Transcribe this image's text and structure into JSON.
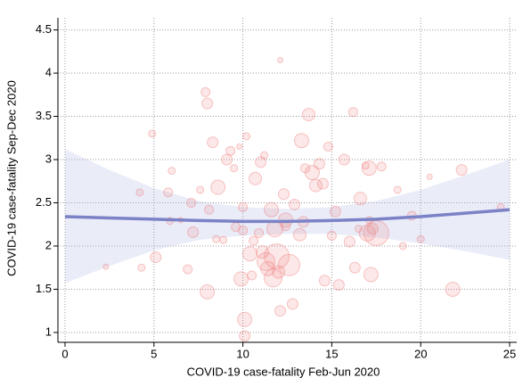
{
  "chart_data": {
    "type": "bubble",
    "xlabel": "COVID-19 case-fatality Feb-Jun 2020",
    "ylabel": "COVID-19 case-fatality Sep-Dec 2020",
    "xlim": [
      -0.4,
      25.4
    ],
    "ylim": [
      0.886,
      4.64
    ],
    "xticks": [
      0,
      5,
      10,
      15,
      20,
      25
    ],
    "yticks": [
      1,
      1.5,
      2,
      2.5,
      3,
      3.5,
      4,
      4.5
    ],
    "grid": true,
    "series": [
      {
        "color": "#f08080",
        "x": [
          2.3,
          4.2,
          4.3,
          4.9,
          5.1,
          5.8,
          5.9,
          6.0,
          6.9,
          7.1,
          7.2,
          7.6,
          7.9,
          8.0,
          8.0,
          8.1,
          8.3,
          8.5,
          8.6,
          8.9,
          9.1,
          9.3,
          9.5,
          9.6,
          9.9,
          10.0,
          10.0,
          10.1,
          10.1,
          10.2,
          10.4,
          10.5,
          10.6,
          10.7,
          10.9,
          11.0,
          11.1,
          11.3,
          11.4,
          11.6,
          11.7,
          11.8,
          11.9,
          12.0,
          12.1,
          12.1,
          12.3,
          12.4,
          12.6,
          12.8,
          12.9,
          13.2,
          13.3,
          13.4,
          13.5,
          13.7,
          13.9,
          14.1,
          14.3,
          14.5,
          14.6,
          14.8,
          15.0,
          15.2,
          15.4,
          15.7,
          16.0,
          16.2,
          16.3,
          16.5,
          16.6,
          16.9,
          17.0,
          17.1,
          17.3,
          17.5,
          17.8,
          17.2,
          17.1,
          18.7,
          19.0,
          19.5,
          20.0,
          21.8,
          22.3,
          24.5,
          20.5,
          11.2,
          12.4,
          9.8,
          6.5
        ],
        "values": [
          1.76,
          2.62,
          1.75,
          3.3,
          1.87,
          2.62,
          2.29,
          2.87,
          1.73,
          2.5,
          2.16,
          2.65,
          3.78,
          3.65,
          1.47,
          2.42,
          3.2,
          2.08,
          2.68,
          2.07,
          3.0,
          3.1,
          2.9,
          2.22,
          1.62,
          2.45,
          2.18,
          1.15,
          0.96,
          3.27,
          1.91,
          1.66,
          2.06,
          2.78,
          2.15,
          2.97,
          1.93,
          1.82,
          1.74,
          2.42,
          1.63,
          2.2,
          1.88,
          1.7,
          4.15,
          1.25,
          2.6,
          2.3,
          1.78,
          1.33,
          2.48,
          2.13,
          3.22,
          2.28,
          2.9,
          3.52,
          2.85,
          2.7,
          2.95,
          2.72,
          1.6,
          3.15,
          2.12,
          2.4,
          1.55,
          3.0,
          2.05,
          3.55,
          1.75,
          2.2,
          2.55,
          2.93,
          2.15,
          2.9,
          2.2,
          2.15,
          2.92,
          1.67,
          2.3,
          2.65,
          2.0,
          2.35,
          2.08,
          1.5,
          2.88,
          2.45,
          2.8,
          3.05,
          2.23,
          3.15,
          2.3
        ],
        "sizes": [
          3,
          4,
          4,
          4,
          6,
          5,
          4,
          4,
          5,
          5,
          6,
          4,
          5,
          6,
          8,
          5,
          6,
          4,
          8,
          4,
          6,
          5,
          4,
          5,
          8,
          5,
          5,
          8,
          6,
          4,
          8,
          5,
          5,
          7,
          5,
          6,
          7,
          10,
          8,
          8,
          10,
          9,
          14,
          7,
          3,
          6,
          6,
          8,
          12,
          6,
          6,
          7,
          8,
          6,
          5,
          7,
          8,
          7,
          6,
          6,
          6,
          5,
          5,
          6,
          6,
          6,
          6,
          5,
          6,
          4,
          7,
          4,
          9,
          8,
          6,
          14,
          5,
          8,
          4,
          4,
          4,
          5,
          4,
          8,
          6,
          4,
          3,
          4,
          5,
          3,
          3
        ]
      }
    ],
    "fit": {
      "color": "#7b82c6",
      "x": [
        0,
        2.5,
        5,
        7.5,
        10,
        12.5,
        15,
        17.5,
        20,
        22.5,
        25
      ],
      "values": [
        2.34,
        2.325,
        2.31,
        2.295,
        2.285,
        2.285,
        2.295,
        2.31,
        2.34,
        2.38,
        2.42
      ],
      "upper": [
        3.12,
        2.88,
        2.67,
        2.52,
        2.45,
        2.43,
        2.45,
        2.52,
        2.65,
        2.82,
        3.0
      ],
      "lower": [
        1.57,
        1.77,
        1.95,
        2.07,
        2.12,
        2.14,
        2.14,
        2.1,
        2.03,
        1.94,
        1.84
      ]
    }
  }
}
